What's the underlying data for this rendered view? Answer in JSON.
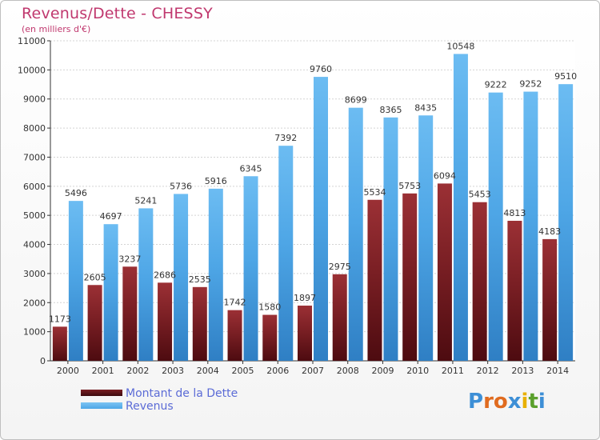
{
  "chart_data": {
    "type": "bar",
    "title": "Revenus/Dette - CHESSY",
    "subtitle": "(en milliers d'€)",
    "categories": [
      "2000",
      "2001",
      "2002",
      "2003",
      "2004",
      "2005",
      "2006",
      "2007",
      "2008",
      "2009",
      "2010",
      "2011",
      "2012",
      "2013",
      "2014"
    ],
    "series": [
      {
        "name": "Montant de la Dette",
        "color": "#7a1f24",
        "values": [
          1173,
          2605,
          3237,
          2686,
          2535,
          1742,
          1580,
          1897,
          2975,
          5534,
          5753,
          6094,
          5453,
          4813,
          4183
        ],
        "labels": [
          "1173",
          "2605",
          "3237",
          "2686",
          "2535",
          "1742",
          "1580",
          "1897",
          "2975",
          "5534",
          "5753",
          "6094",
          "5453",
          "4813",
          "4183"
        ]
      },
      {
        "name": "Revenus",
        "color": "#4ea6e6",
        "values": [
          5496,
          4697,
          5241,
          5736,
          5916,
          6345,
          7392,
          9760,
          8699,
          8365,
          8435,
          10548,
          9222,
          9252,
          9510
        ],
        "labels": [
          "5496",
          "4697",
          "5241",
          "5736",
          "5916",
          "6345",
          "7392",
          "9760",
          "8699",
          "8365",
          "8435",
          "10548",
          "9222",
          "9252",
          "9510"
        ]
      }
    ],
    "yticks": [
      0,
      1000,
      2000,
      3000,
      4000,
      5000,
      6000,
      7000,
      8000,
      9000,
      10000,
      11000
    ],
    "ylim": [
      0,
      11000
    ],
    "grid": true,
    "legend_position": "bottom-left"
  },
  "logo_text": "Proxiti",
  "logo_letters": [
    {
      "ch": "P",
      "color": "#3d8fd6"
    },
    {
      "ch": "r",
      "color": "#e06b1f"
    },
    {
      "ch": "o",
      "color": "#e06b1f"
    },
    {
      "ch": "x",
      "color": "#3d8fd6"
    },
    {
      "ch": "i",
      "color": "#e8b000"
    },
    {
      "ch": "t",
      "color": "#5aa02c"
    },
    {
      "ch": "i",
      "color": "#3d8fd6"
    }
  ]
}
